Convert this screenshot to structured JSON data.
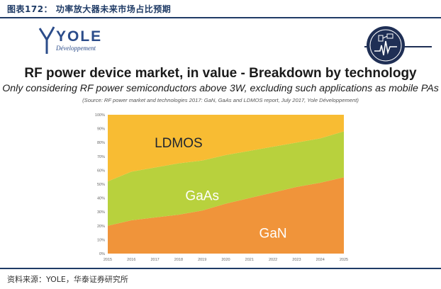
{
  "figure_header": "图表172： 功率放大器未来市场占比预期",
  "logo": {
    "name": "YOLE",
    "subtitle": "Développement"
  },
  "title": "RF power device market, in value - Breakdown by technology",
  "subtitle": "Only considering RF power semiconductors above 3W, excluding such applications as mobile PAs",
  "source_note": "(Source: RF power market and technologies 2017: GaN, GaAs and LDMOS report, July 2017, Yole Développement)",
  "footer": "资料来源：YOLE，华泰证券研究所",
  "colors": {
    "gan": "#f0943a",
    "gaas": "#b8d13d",
    "ldmos": "#f8bc33",
    "header": "#1f3b66"
  },
  "chart_data": {
    "type": "area",
    "stacked": true,
    "percent": true,
    "x": [
      "2015",
      "2016",
      "2017",
      "2018",
      "2019",
      "2020",
      "2021",
      "2022",
      "2023",
      "2024",
      "2025"
    ],
    "series": [
      {
        "name": "GaN",
        "values": [
          20,
          24,
          26,
          28,
          31,
          36,
          40,
          44,
          48,
          51,
          55
        ]
      },
      {
        "name": "GaAs",
        "values": [
          32,
          35,
          36,
          37,
          36,
          35,
          34,
          33,
          32,
          32,
          33
        ]
      },
      {
        "name": "LDMOS",
        "values": [
          48,
          41,
          38,
          35,
          33,
          29,
          26,
          23,
          20,
          17,
          12
        ]
      }
    ],
    "y_ticks": [
      "0%",
      "10%",
      "20%",
      "30%",
      "40%",
      "50%",
      "60%",
      "70%",
      "80%",
      "90%",
      "100%"
    ],
    "ylim": [
      0,
      100
    ],
    "labels": [
      {
        "text": "LDMOS",
        "x": 2018,
        "y": 80
      },
      {
        "text": "GaAs",
        "x": 2019,
        "y": 42
      },
      {
        "text": "GaN",
        "x": 2022,
        "y": 15
      }
    ]
  }
}
